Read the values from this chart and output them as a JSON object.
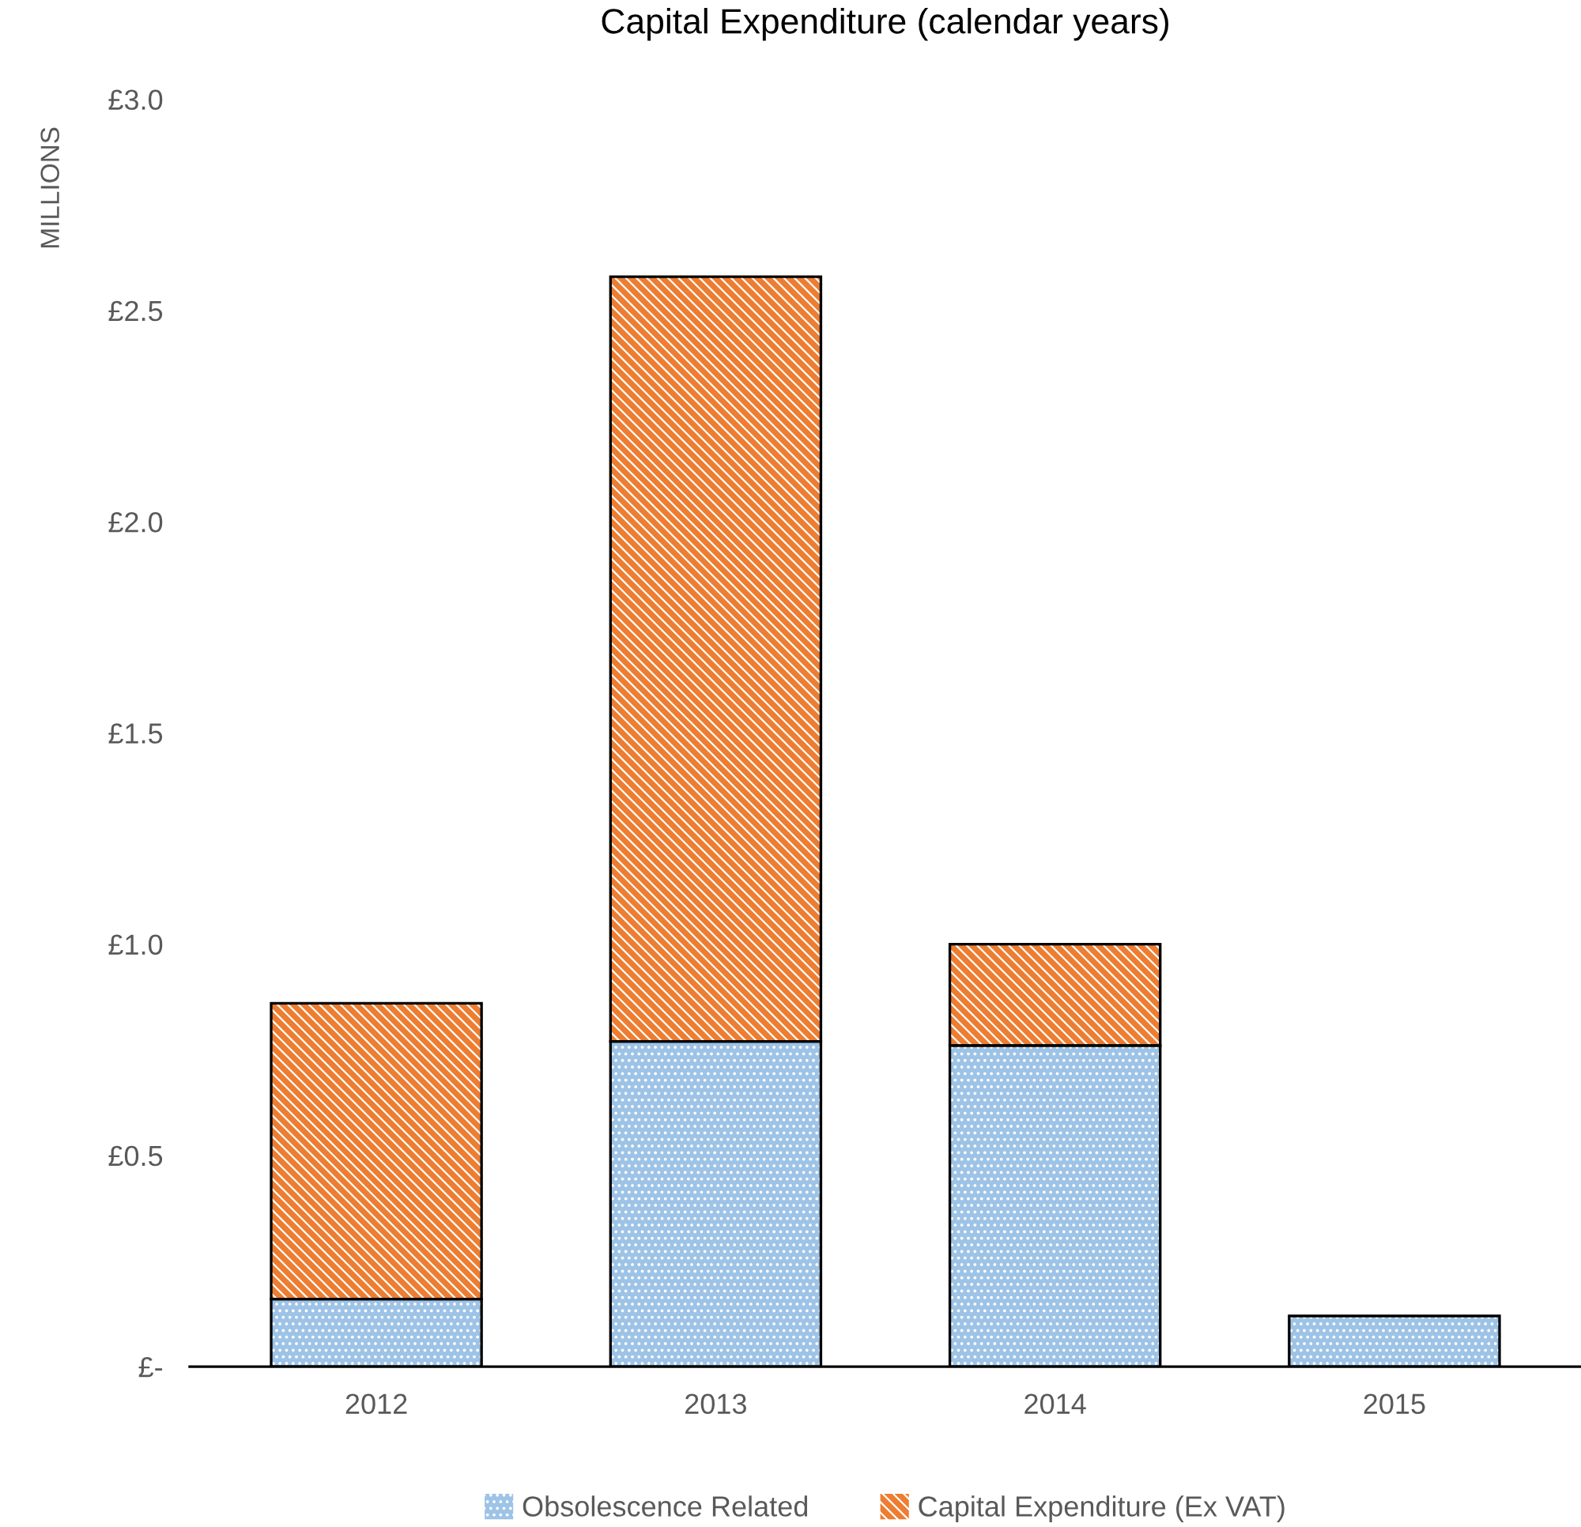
{
  "chart_data": {
    "type": "bar",
    "title": "Capital Expenditure (calendar years)",
    "ylabel": "MILLIONS",
    "categories": [
      "2012",
      "2013",
      "2014",
      "2015"
    ],
    "series": [
      {
        "name": "Obsolescence Related",
        "color": "#9dc3e6",
        "values": [
          0.16,
          0.77,
          0.76,
          0.12
        ]
      },
      {
        "name": "Capital Expenditure (Ex VAT)",
        "color": "#ed7d31",
        "values": [
          0.7,
          1.81,
          0.24,
          0
        ]
      }
    ],
    "stacked": true,
    "ylim": [
      0,
      3.0
    ],
    "yticks": [
      {
        "value": 0,
        "label": "£-"
      },
      {
        "value": 0.5,
        "label": "£0.5"
      },
      {
        "value": 1.0,
        "label": "£1.0"
      },
      {
        "value": 1.5,
        "label": "£1.5"
      },
      {
        "value": 2.0,
        "label": "£2.0"
      },
      {
        "value": 2.5,
        "label": "£2.5"
      },
      {
        "value": 3.0,
        "label": "£3.0"
      }
    ],
    "grid": false,
    "legend": "bottom"
  }
}
